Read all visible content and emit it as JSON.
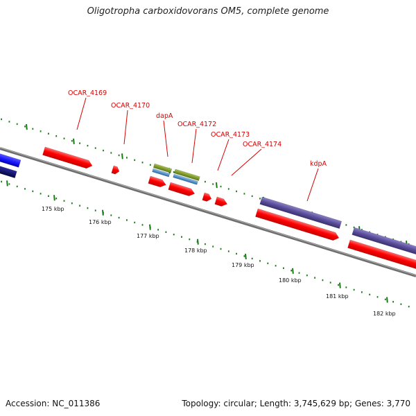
{
  "title": "Oligotropha carboxidovorans OM5, complete genome",
  "footer": {
    "accession": "Accession: NC_011386",
    "topology": "Topology: circular; Length: 3,745,629 bp; Genes: 3,770"
  },
  "colors": {
    "backbone": "#8a8a8a",
    "gene": "#ff0000",
    "label": "#d40000",
    "tick": "#1a7a1a",
    "blue": "#1a1aff",
    "navy": "#0a0a70",
    "purple": "#5a4e9a",
    "olive": "#7a9a2a",
    "steel": "#4a86c0"
  },
  "scale": {
    "tick_labels": [
      "175 kbp",
      "176 kbp",
      "177 kbp",
      "178 kbp",
      "179 kbp",
      "180 kbp",
      "181 kbp",
      "182 kbp"
    ]
  },
  "gene_labels": [
    "OCAR_4169",
    "OCAR_4170",
    "dapA",
    "OCAR_4172",
    "OCAR_4173",
    "OCAR_4174",
    "kdpA"
  ]
}
